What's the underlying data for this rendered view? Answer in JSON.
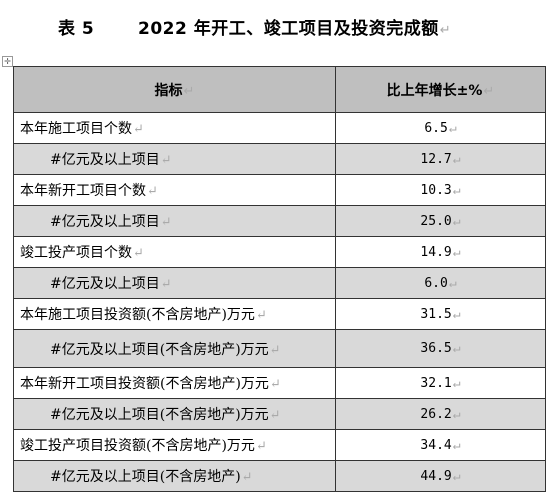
{
  "title": {
    "table_label": "表 5",
    "text": "2022 年开工、竣工项目及投资完成额"
  },
  "table": {
    "headers": [
      "指标",
      "比上年增长±%"
    ],
    "rows": [
      {
        "name": "本年施工项目个数",
        "value": "6.5",
        "sub": false
      },
      {
        "name": "#亿元及以上项目",
        "value": "12.7",
        "sub": true
      },
      {
        "name": "本年新开工项目个数",
        "value": "10.3",
        "sub": false
      },
      {
        "name": "#亿元及以上项目",
        "value": "25.0",
        "sub": true
      },
      {
        "name": "竣工投产项目个数",
        "value": "14.9",
        "sub": false
      },
      {
        "name": "#亿元及以上项目",
        "value": "6.0",
        "sub": true
      },
      {
        "name": "本年施工项目投资额(不含房地产)万元",
        "value": "31.5",
        "sub": false
      },
      {
        "name": "#亿元及以上项目(不含房地产)万元",
        "value": "36.5",
        "sub": true
      },
      {
        "name": "本年新开工项目投资额(不含房地产)万元",
        "value": "32.1",
        "sub": false
      },
      {
        "name": "#亿元及以上项目(不含房地产)万元",
        "value": "26.2",
        "sub": true
      },
      {
        "name": "竣工投产项目投资额(不含房地产)万元",
        "value": "34.4",
        "sub": false
      },
      {
        "name": "#亿元及以上项目(不含房地产)",
        "value": "44.9",
        "sub": true
      }
    ]
  }
}
